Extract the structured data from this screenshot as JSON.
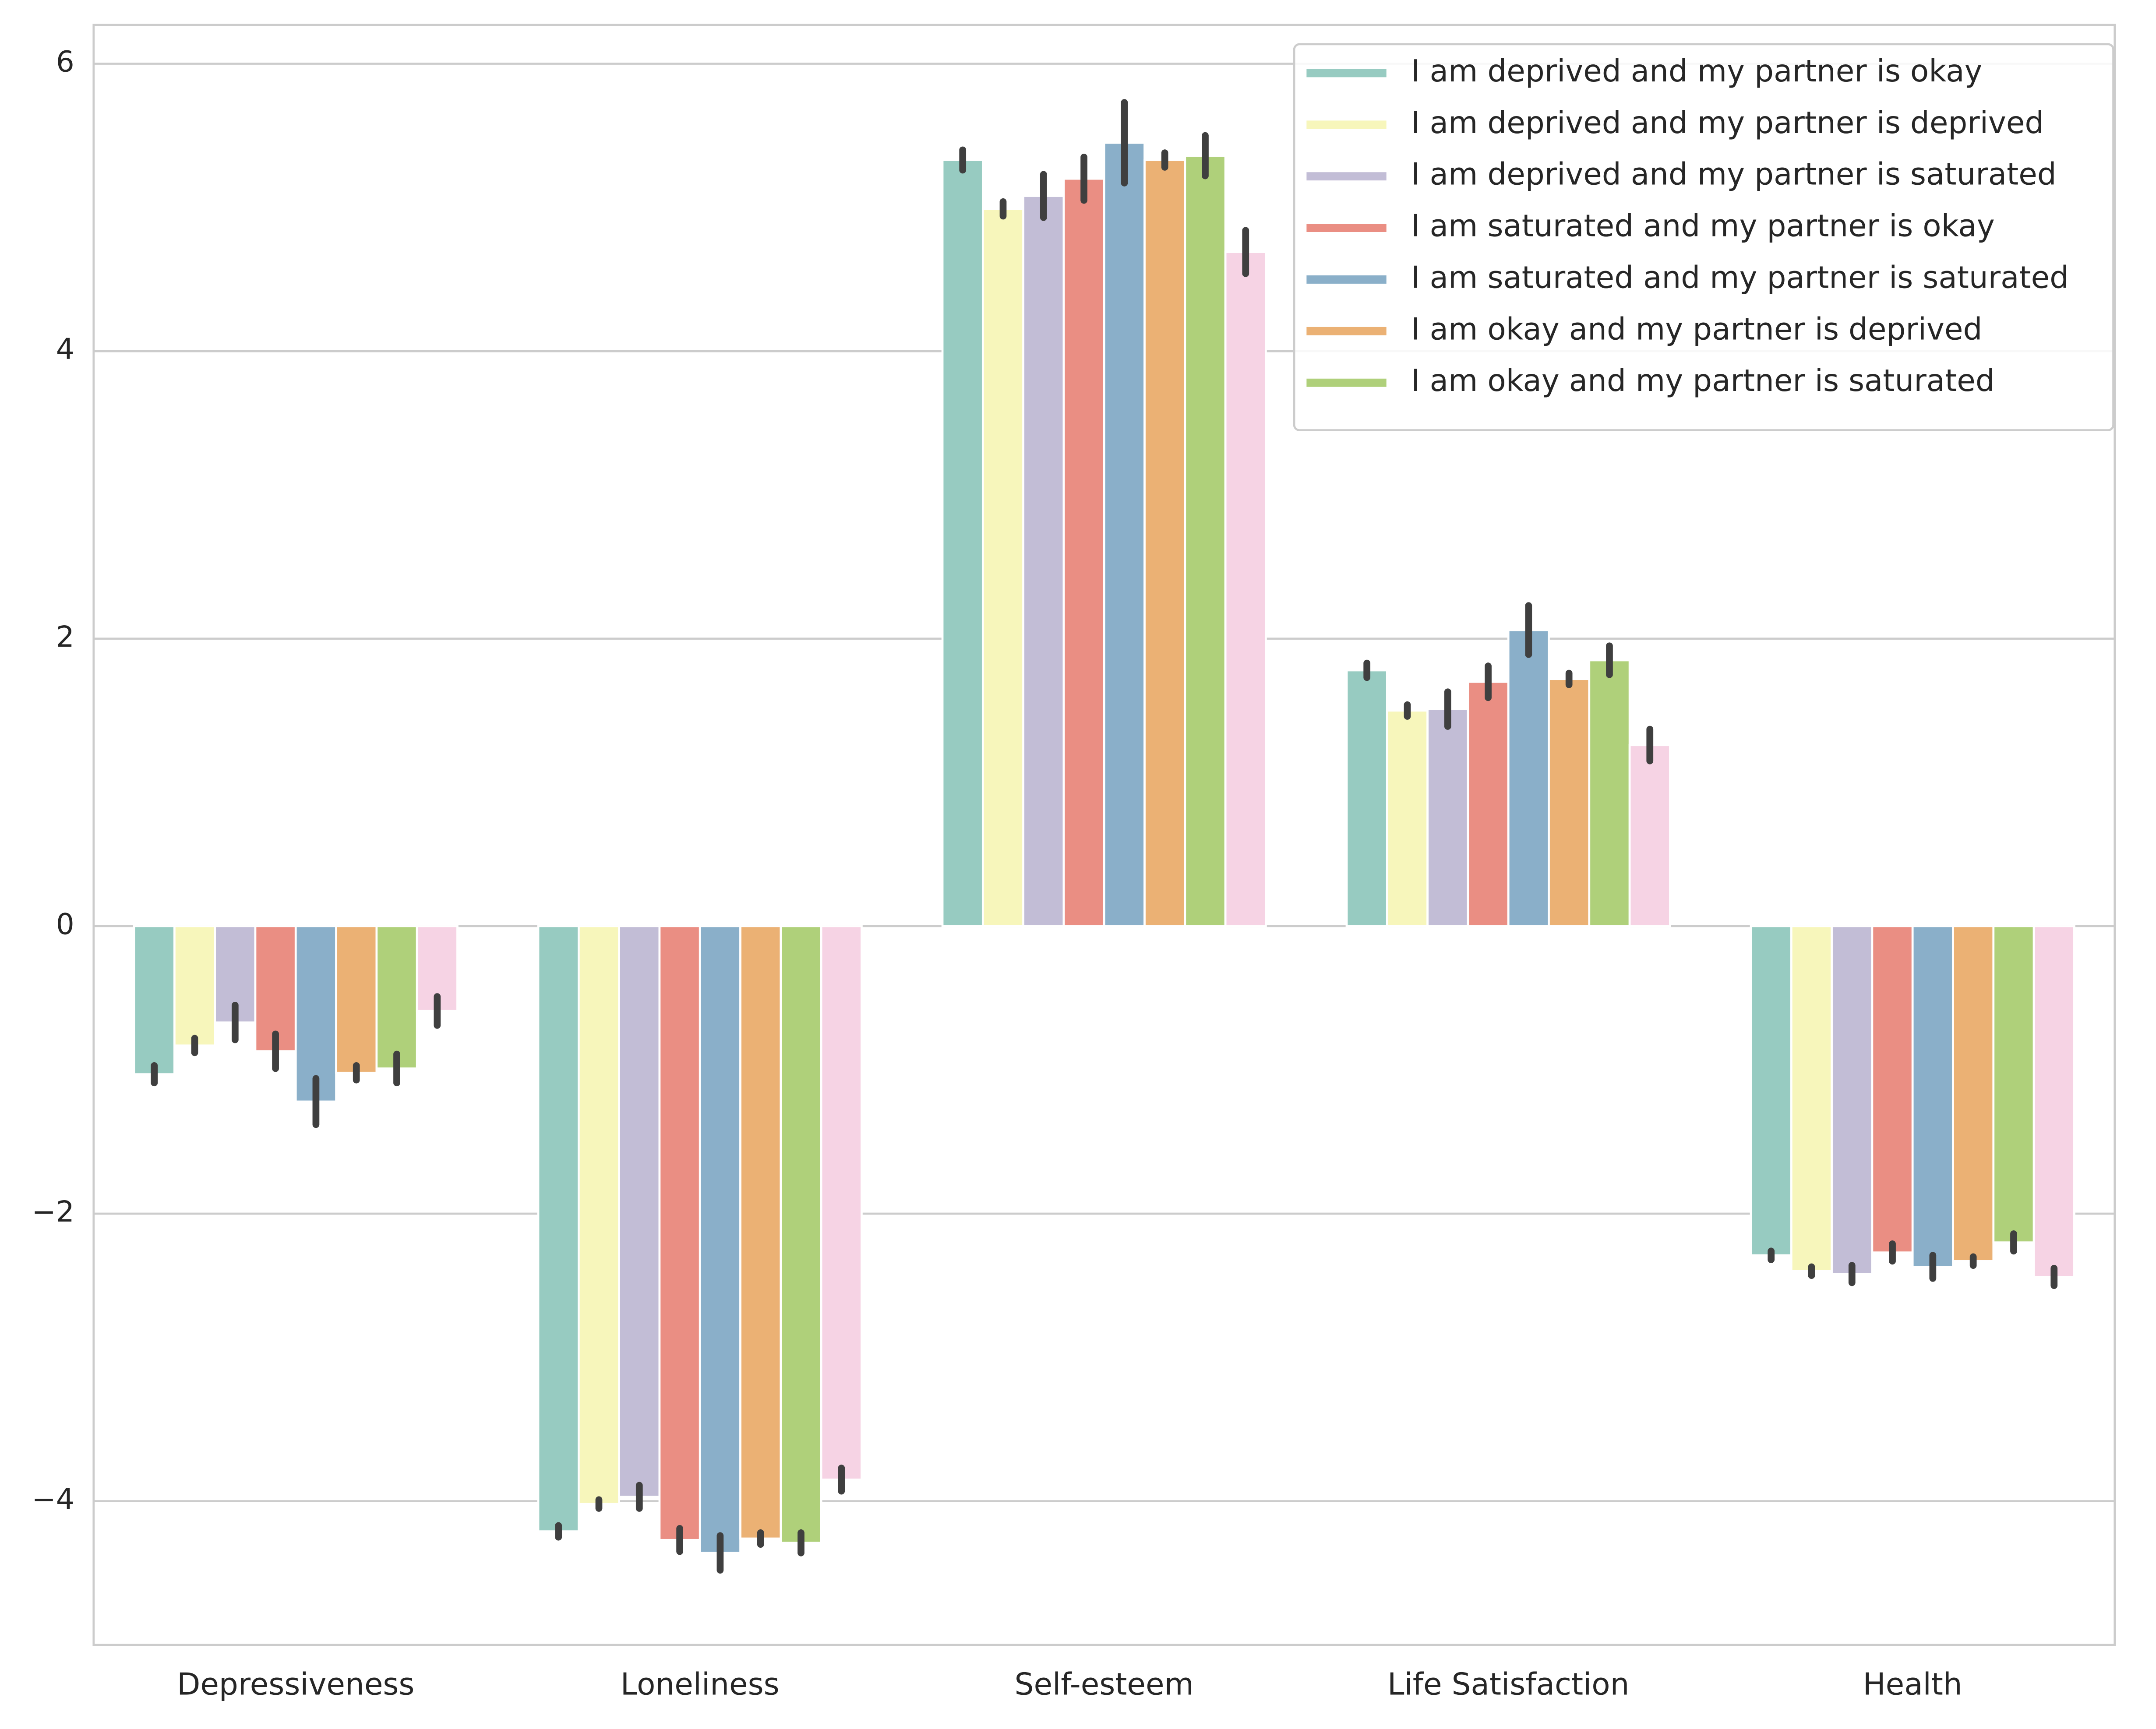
{
  "chart_data": {
    "type": "bar",
    "categories": [
      "Depressiveness",
      "Loneliness",
      "Self-esteem",
      "Life Satisfaction",
      "Health"
    ],
    "series": [
      {
        "name": "I am deprived and my partner is okay",
        "color": "#97cbc1",
        "values": [
          -1.03,
          -4.21,
          5.33,
          1.78,
          -2.29
        ],
        "errors": [
          0.06,
          0.04,
          0.07,
          0.05,
          0.03
        ]
      },
      {
        "name": "I am deprived and my partner is deprived",
        "color": "#f7f6bb",
        "values": [
          -0.83,
          -4.02,
          4.99,
          1.5,
          -2.4
        ],
        "errors": [
          0.05,
          0.03,
          0.05,
          0.04,
          0.03
        ]
      },
      {
        "name": "I am deprived and my partner is saturated",
        "color": "#c2bdd6",
        "values": [
          -0.67,
          -3.97,
          5.08,
          1.51,
          -2.42
        ],
        "errors": [
          0.12,
          0.08,
          0.15,
          0.12,
          0.06
        ]
      },
      {
        "name": "I am saturated and my partner is okay",
        "color": "#ea8e83",
        "values": [
          -0.87,
          -4.27,
          5.2,
          1.7,
          -2.27
        ],
        "errors": [
          0.12,
          0.08,
          0.15,
          0.11,
          0.06
        ]
      },
      {
        "name": "I am saturated and my partner is saturated",
        "color": "#8aafc9",
        "values": [
          -1.22,
          -4.36,
          5.45,
          2.06,
          -2.37
        ],
        "errors": [
          0.16,
          0.12,
          0.28,
          0.17,
          0.08
        ]
      },
      {
        "name": "I am okay and my partner is deprived",
        "color": "#ebb174",
        "values": [
          -1.02,
          -4.26,
          5.33,
          1.72,
          -2.33
        ],
        "errors": [
          0.05,
          0.04,
          0.05,
          0.04,
          0.03
        ]
      },
      {
        "name": "I am okay and my partner is saturated",
        "color": "#afd07a",
        "values": [
          -0.99,
          -4.29,
          5.36,
          1.85,
          -2.2
        ],
        "errors": [
          0.1,
          0.07,
          0.14,
          0.1,
          0.06
        ]
      },
      {
        "color": "#f6d3e4",
        "values": [
          -0.59,
          -3.85,
          4.69,
          1.26,
          -2.44
        ],
        "errors": [
          0.1,
          0.08,
          0.15,
          0.11,
          0.06
        ]
      }
    ],
    "ylim": [
      -5,
      6.27
    ],
    "yticks": [
      {
        "value": -4,
        "label": "−4"
      },
      {
        "value": -2,
        "label": "−2"
      },
      0,
      2,
      4,
      6
    ],
    "grid": true,
    "legend": "upper right"
  }
}
